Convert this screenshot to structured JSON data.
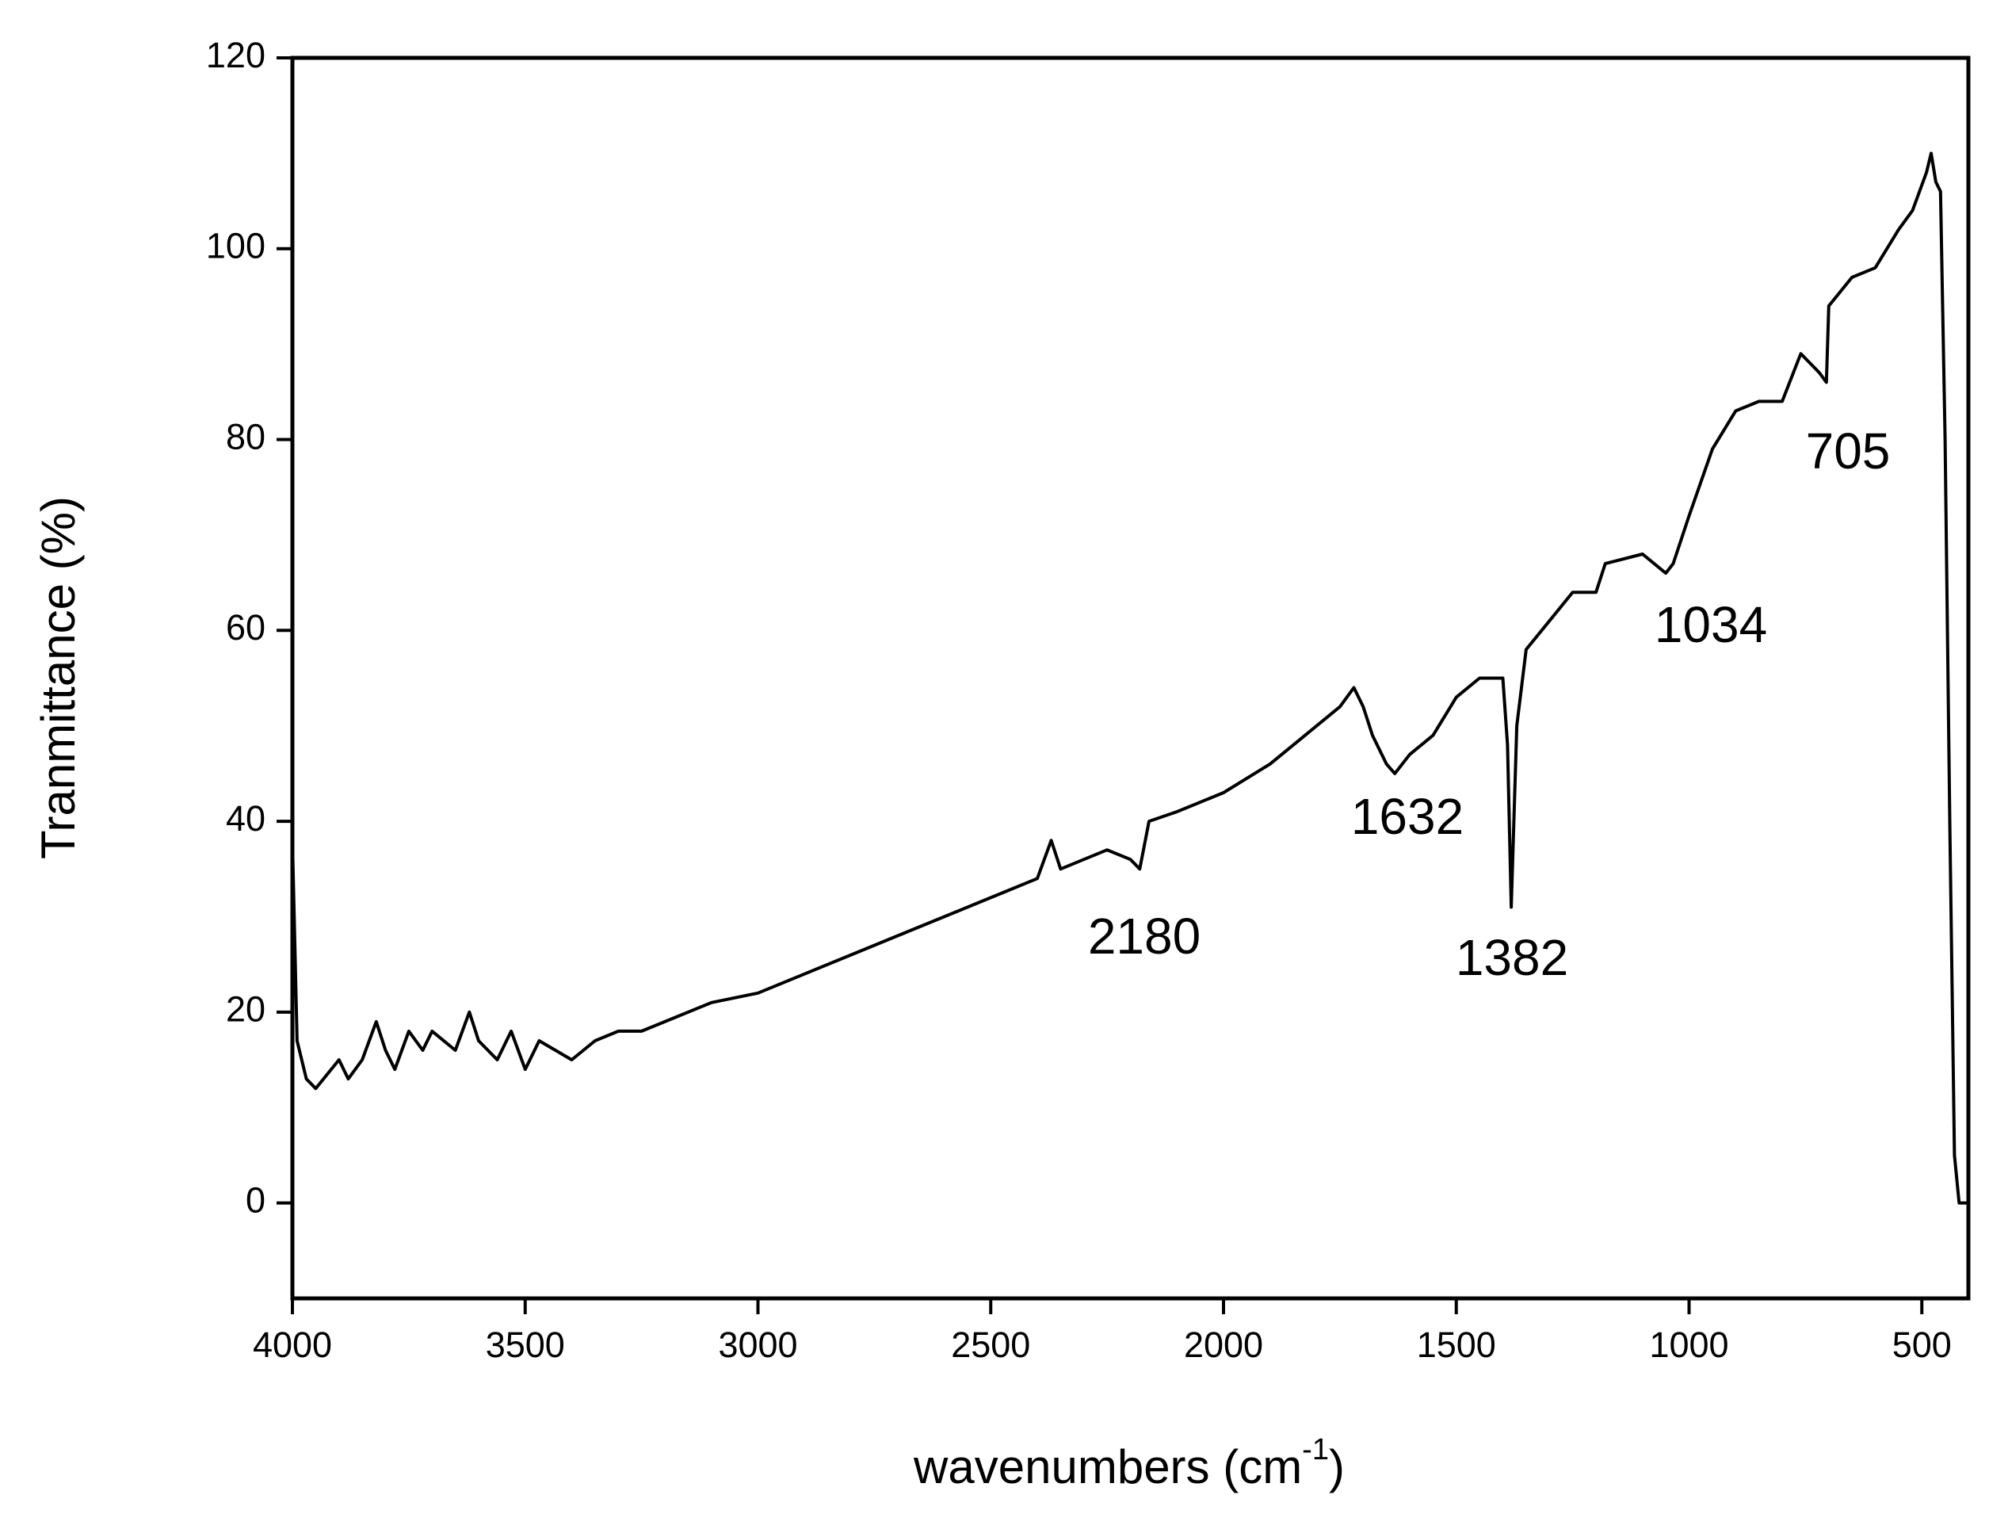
{
  "chart_data": {
    "type": "line",
    "y_label": "Tranmittance (%)",
    "x_label": {
      "main": "wavenumbers (cm",
      "superscript": "-1",
      "suffix": ")"
    },
    "color": "#000000",
    "xlim": [
      4000,
      400
    ],
    "xticks": [
      4000,
      3500,
      3000,
      2500,
      2000,
      1500,
      1000,
      500
    ],
    "ylim": [
      -10,
      120
    ],
    "yticks": [
      0,
      20,
      40,
      60,
      80,
      100,
      120
    ],
    "grid": false,
    "x": [
      4000,
      3990,
      3970,
      3950,
      3900,
      3880,
      3850,
      3820,
      3800,
      3780,
      3750,
      3720,
      3700,
      3650,
      3620,
      3600,
      3560,
      3530,
      3500,
      3470,
      3400,
      3350,
      3300,
      3250,
      3200,
      3100,
      3000,
      2900,
      2800,
      2700,
      2600,
      2500,
      2400,
      2370,
      2350,
      2300,
      2250,
      2200,
      2180,
      2160,
      2100,
      2000,
      1900,
      1800,
      1750,
      1720,
      1700,
      1680,
      1650,
      1632,
      1600,
      1550,
      1500,
      1450,
      1400,
      1390,
      1382,
      1370,
      1350,
      1300,
      1250,
      1200,
      1180,
      1100,
      1050,
      1034,
      1000,
      950,
      900,
      850,
      800,
      760,
      720,
      705,
      700,
      650,
      600,
      550,
      520,
      490,
      480,
      470,
      460,
      450,
      440,
      430,
      420,
      410,
      400
    ],
    "values": [
      38,
      17,
      13,
      12,
      15,
      13,
      15,
      19,
      16,
      14,
      18,
      16,
      18,
      16,
      20,
      17,
      15,
      18,
      14,
      17,
      15,
      17,
      18,
      18,
      19,
      21,
      22,
      24,
      26,
      28,
      30,
      32,
      34,
      38,
      35,
      36,
      37,
      36,
      35,
      40,
      41,
      43,
      46,
      50,
      52,
      54,
      52,
      49,
      46,
      45,
      47,
      49,
      53,
      55,
      55,
      48,
      31,
      50,
      58,
      61,
      64,
      64,
      67,
      68,
      66,
      67,
      72,
      79,
      83,
      84,
      84,
      89,
      87,
      86,
      94,
      97,
      98,
      102,
      104,
      108,
      110,
      107,
      106,
      80,
      40,
      5,
      0,
      0,
      0
    ],
    "annotations": [
      "2180",
      "1632",
      "1382",
      "1034",
      "705"
    ]
  }
}
